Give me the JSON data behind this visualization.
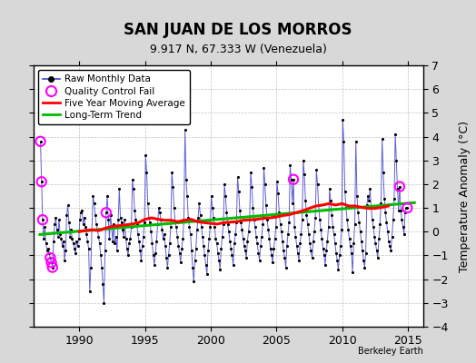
{
  "title": "SAN JUAN DE LOS MORROS",
  "subtitle": "9.917 N, 67.333 W (Venezuela)",
  "ylabel": "Temperature Anomaly (°C)",
  "credit": "Berkeley Earth",
  "xlim": [
    1986.5,
    2016.2
  ],
  "ylim": [
    -4,
    7
  ],
  "yticks": [
    -4,
    -3,
    -2,
    -1,
    0,
    1,
    2,
    3,
    4,
    5,
    6,
    7
  ],
  "xticks": [
    1990,
    1995,
    2000,
    2005,
    2010,
    2015
  ],
  "bg_color": "#d8d8d8",
  "plot_bg_color": "#ffffff",
  "raw_line_color": "#4444cc",
  "raw_dot_color": "#000000",
  "ma_color": "#ff0000",
  "trend_color": "#00bb00",
  "qc_color": "#ff00ff",
  "raw_data": [
    [
      1987.042,
      3.8
    ],
    [
      1987.125,
      2.1
    ],
    [
      1987.208,
      0.5
    ],
    [
      1987.292,
      -0.3
    ],
    [
      1987.375,
      0.2
    ],
    [
      1987.458,
      -0.5
    ],
    [
      1987.542,
      -0.8
    ],
    [
      1987.625,
      -0.7
    ],
    [
      1987.708,
      -0.9
    ],
    [
      1987.792,
      -1.1
    ],
    [
      1987.875,
      -1.3
    ],
    [
      1987.958,
      -1.5
    ],
    [
      1988.042,
      -0.4
    ],
    [
      1988.125,
      0.3
    ],
    [
      1988.208,
      0.6
    ],
    [
      1988.292,
      0.1
    ],
    [
      1988.375,
      -0.2
    ],
    [
      1988.458,
      0.5
    ],
    [
      1988.542,
      -0.1
    ],
    [
      1988.625,
      -0.3
    ],
    [
      1988.708,
      -0.6
    ],
    [
      1988.792,
      -0.4
    ],
    [
      1988.875,
      -1.2
    ],
    [
      1988.958,
      -0.8
    ],
    [
      1989.042,
      0.7
    ],
    [
      1989.125,
      1.1
    ],
    [
      1989.208,
      0.4
    ],
    [
      1989.292,
      -0.2
    ],
    [
      1989.375,
      0.1
    ],
    [
      1989.458,
      -0.3
    ],
    [
      1989.542,
      -0.5
    ],
    [
      1989.625,
      -0.7
    ],
    [
      1989.708,
      -0.9
    ],
    [
      1989.792,
      -0.4
    ],
    [
      1989.875,
      -0.6
    ],
    [
      1989.958,
      -0.3
    ],
    [
      1990.042,
      0.5
    ],
    [
      1990.125,
      0.8
    ],
    [
      1990.208,
      0.9
    ],
    [
      1990.292,
      0.3
    ],
    [
      1990.375,
      0.6
    ],
    [
      1990.458,
      0.2
    ],
    [
      1990.542,
      -0.1
    ],
    [
      1990.625,
      -0.4
    ],
    [
      1990.708,
      -0.7
    ],
    [
      1990.792,
      -2.5
    ],
    [
      1990.875,
      -1.5
    ],
    [
      1990.958,
      0.1
    ],
    [
      1991.042,
      1.5
    ],
    [
      1991.125,
      1.2
    ],
    [
      1991.208,
      0.7
    ],
    [
      1991.292,
      0.3
    ],
    [
      1991.375,
      0.1
    ],
    [
      1991.458,
      -0.2
    ],
    [
      1991.542,
      -0.5
    ],
    [
      1991.625,
      -1.0
    ],
    [
      1991.708,
      -1.5
    ],
    [
      1991.792,
      -2.2
    ],
    [
      1991.875,
      -3.0
    ],
    [
      1991.958,
      -0.8
    ],
    [
      1992.042,
      0.8
    ],
    [
      1992.125,
      1.5
    ],
    [
      1992.208,
      0.5
    ],
    [
      1992.292,
      -0.3
    ],
    [
      1992.375,
      0.7
    ],
    [
      1992.458,
      0.2
    ],
    [
      1992.542,
      -0.4
    ],
    [
      1992.625,
      0.3
    ],
    [
      1992.708,
      -0.5
    ],
    [
      1992.792,
      -0.2
    ],
    [
      1992.875,
      -0.8
    ],
    [
      1992.958,
      0.5
    ],
    [
      1993.042,
      1.8
    ],
    [
      1993.125,
      0.6
    ],
    [
      1993.208,
      0.4
    ],
    [
      1993.292,
      0.1
    ],
    [
      1993.375,
      -0.2
    ],
    [
      1993.458,
      0.5
    ],
    [
      1993.542,
      -0.3
    ],
    [
      1993.625,
      -0.7
    ],
    [
      1993.708,
      -1.0
    ],
    [
      1993.792,
      -0.5
    ],
    [
      1993.875,
      -0.3
    ],
    [
      1993.958,
      0.2
    ],
    [
      1994.042,
      2.2
    ],
    [
      1994.125,
      1.8
    ],
    [
      1994.208,
      0.9
    ],
    [
      1994.292,
      0.5
    ],
    [
      1994.375,
      0.3
    ],
    [
      1994.458,
      -0.1
    ],
    [
      1994.542,
      -0.4
    ],
    [
      1994.625,
      -0.8
    ],
    [
      1994.708,
      -1.2
    ],
    [
      1994.792,
      -0.6
    ],
    [
      1994.875,
      -0.2
    ],
    [
      1994.958,
      0.4
    ],
    [
      1995.042,
      3.2
    ],
    [
      1995.125,
      2.5
    ],
    [
      1995.208,
      1.2
    ],
    [
      1995.292,
      0.6
    ],
    [
      1995.375,
      0.4
    ],
    [
      1995.458,
      0.0
    ],
    [
      1995.542,
      -0.5
    ],
    [
      1995.625,
      -1.0
    ],
    [
      1995.708,
      -1.4
    ],
    [
      1995.792,
      -0.9
    ],
    [
      1995.875,
      -0.4
    ],
    [
      1995.958,
      0.3
    ],
    [
      1996.042,
      1.0
    ],
    [
      1996.125,
      0.8
    ],
    [
      1996.208,
      0.5
    ],
    [
      1996.292,
      0.1
    ],
    [
      1996.375,
      -0.3
    ],
    [
      1996.458,
      -0.1
    ],
    [
      1996.542,
      -0.6
    ],
    [
      1996.625,
      -1.1
    ],
    [
      1996.708,
      -1.5
    ],
    [
      1996.792,
      -1.0
    ],
    [
      1996.875,
      -0.5
    ],
    [
      1996.958,
      0.2
    ],
    [
      1997.042,
      2.5
    ],
    [
      1997.125,
      1.9
    ],
    [
      1997.208,
      1.0
    ],
    [
      1997.292,
      0.4
    ],
    [
      1997.375,
      0.2
    ],
    [
      1997.458,
      -0.2
    ],
    [
      1997.542,
      -0.6
    ],
    [
      1997.625,
      -0.9
    ],
    [
      1997.708,
      -1.3
    ],
    [
      1997.792,
      -0.7
    ],
    [
      1997.875,
      -0.3
    ],
    [
      1997.958,
      0.5
    ],
    [
      1998.042,
      4.3
    ],
    [
      1998.125,
      2.2
    ],
    [
      1998.208,
      1.5
    ],
    [
      1998.292,
      0.6
    ],
    [
      1998.375,
      0.2
    ],
    [
      1998.458,
      -0.1
    ],
    [
      1998.542,
      -0.8
    ],
    [
      1998.625,
      -1.5
    ],
    [
      1998.708,
      -2.1
    ],
    [
      1998.792,
      -1.2
    ],
    [
      1998.875,
      -0.7
    ],
    [
      1998.958,
      0.1
    ],
    [
      1999.042,
      0.6
    ],
    [
      1999.125,
      1.2
    ],
    [
      1999.208,
      0.7
    ],
    [
      1999.292,
      0.2
    ],
    [
      1999.375,
      -0.2
    ],
    [
      1999.458,
      -0.6
    ],
    [
      1999.542,
      -1.0
    ],
    [
      1999.625,
      -1.4
    ],
    [
      1999.708,
      -1.8
    ],
    [
      1999.792,
      -0.8
    ],
    [
      1999.875,
      -0.3
    ],
    [
      1999.958,
      0.2
    ],
    [
      2000.042,
      1.5
    ],
    [
      2000.125,
      1.0
    ],
    [
      2000.208,
      0.6
    ],
    [
      2000.292,
      0.2
    ],
    [
      2000.375,
      -0.3
    ],
    [
      2000.458,
      -0.5
    ],
    [
      2000.542,
      -0.9
    ],
    [
      2000.625,
      -1.2
    ],
    [
      2000.708,
      -1.6
    ],
    [
      2000.792,
      -0.7
    ],
    [
      2000.875,
      -0.2
    ],
    [
      2000.958,
      0.3
    ],
    [
      2001.042,
      2.0
    ],
    [
      2001.125,
      1.5
    ],
    [
      2001.208,
      0.8
    ],
    [
      2001.292,
      0.3
    ],
    [
      2001.375,
      0.0
    ],
    [
      2001.458,
      -0.4
    ],
    [
      2001.542,
      -0.7
    ],
    [
      2001.625,
      -1.0
    ],
    [
      2001.708,
      -1.4
    ],
    [
      2001.792,
      -0.5
    ],
    [
      2001.875,
      -0.1
    ],
    [
      2001.958,
      0.4
    ],
    [
      2002.042,
      2.3
    ],
    [
      2002.125,
      1.7
    ],
    [
      2002.208,
      0.9
    ],
    [
      2002.292,
      0.4
    ],
    [
      2002.375,
      0.1
    ],
    [
      2002.458,
      -0.3
    ],
    [
      2002.542,
      -0.6
    ],
    [
      2002.625,
      -0.8
    ],
    [
      2002.708,
      -1.1
    ],
    [
      2002.792,
      -0.4
    ],
    [
      2002.875,
      0.0
    ],
    [
      2002.958,
      0.5
    ],
    [
      2003.042,
      2.5
    ],
    [
      2003.125,
      1.9
    ],
    [
      2003.208,
      1.0
    ],
    [
      2003.292,
      0.5
    ],
    [
      2003.375,
      0.2
    ],
    [
      2003.458,
      -0.2
    ],
    [
      2003.542,
      -0.5
    ],
    [
      2003.625,
      -0.9
    ],
    [
      2003.708,
      -1.2
    ],
    [
      2003.792,
      -0.6
    ],
    [
      2003.875,
      -0.2
    ],
    [
      2003.958,
      0.3
    ],
    [
      2004.042,
      2.7
    ],
    [
      2004.125,
      2.0
    ],
    [
      2004.208,
      1.1
    ],
    [
      2004.292,
      0.5
    ],
    [
      2004.375,
      0.1
    ],
    [
      2004.458,
      -0.3
    ],
    [
      2004.542,
      -0.7
    ],
    [
      2004.625,
      -1.0
    ],
    [
      2004.708,
      -1.3
    ],
    [
      2004.792,
      -0.7
    ],
    [
      2004.875,
      -0.3
    ],
    [
      2004.958,
      0.2
    ],
    [
      2005.042,
      2.1
    ],
    [
      2005.125,
      1.6
    ],
    [
      2005.208,
      0.8
    ],
    [
      2005.292,
      0.3
    ],
    [
      2005.375,
      0.0
    ],
    [
      2005.458,
      -0.4
    ],
    [
      2005.542,
      -0.8
    ],
    [
      2005.625,
      -1.1
    ],
    [
      2005.708,
      -1.5
    ],
    [
      2005.792,
      -0.6
    ],
    [
      2005.875,
      -0.1
    ],
    [
      2005.958,
      0.4
    ],
    [
      2006.042,
      2.8
    ],
    [
      2006.125,
      2.2
    ],
    [
      2006.208,
      1.2
    ],
    [
      2006.292,
      2.2
    ],
    [
      2006.375,
      0.2
    ],
    [
      2006.458,
      -0.2
    ],
    [
      2006.542,
      -0.6
    ],
    [
      2006.625,
      -0.9
    ],
    [
      2006.708,
      -1.2
    ],
    [
      2006.792,
      -0.5
    ],
    [
      2006.875,
      -0.1
    ],
    [
      2006.958,
      0.5
    ],
    [
      2007.042,
      3.0
    ],
    [
      2007.125,
      2.4
    ],
    [
      2007.208,
      1.3
    ],
    [
      2007.292,
      0.7
    ],
    [
      2007.375,
      0.3
    ],
    [
      2007.458,
      -0.1
    ],
    [
      2007.542,
      -0.5
    ],
    [
      2007.625,
      -0.8
    ],
    [
      2007.708,
      -1.1
    ],
    [
      2007.792,
      -0.4
    ],
    [
      2007.875,
      0.0
    ],
    [
      2007.958,
      0.6
    ],
    [
      2008.042,
      2.6
    ],
    [
      2008.125,
      2.0
    ],
    [
      2008.208,
      1.1
    ],
    [
      2008.292,
      0.5
    ],
    [
      2008.375,
      0.1
    ],
    [
      2008.458,
      -0.3
    ],
    [
      2008.542,
      -0.7
    ],
    [
      2008.625,
      -1.0
    ],
    [
      2008.708,
      -1.4
    ],
    [
      2008.792,
      -0.8
    ],
    [
      2008.875,
      -0.4
    ],
    [
      2008.958,
      0.2
    ],
    [
      2009.042,
      1.8
    ],
    [
      2009.125,
      1.3
    ],
    [
      2009.208,
      0.7
    ],
    [
      2009.292,
      0.2
    ],
    [
      2009.375,
      -0.1
    ],
    [
      2009.458,
      -0.5
    ],
    [
      2009.542,
      -0.9
    ],
    [
      2009.625,
      -1.2
    ],
    [
      2009.708,
      -1.6
    ],
    [
      2009.792,
      -1.0
    ],
    [
      2009.875,
      -0.6
    ],
    [
      2009.958,
      0.1
    ],
    [
      2010.042,
      4.7
    ],
    [
      2010.125,
      3.8
    ],
    [
      2010.208,
      1.7
    ],
    [
      2010.292,
      1.0
    ],
    [
      2010.375,
      0.5
    ],
    [
      2010.458,
      0.1
    ],
    [
      2010.542,
      -0.3
    ],
    [
      2010.625,
      -0.6
    ],
    [
      2010.708,
      -0.9
    ],
    [
      2010.792,
      -1.7
    ],
    [
      2010.875,
      -0.5
    ],
    [
      2010.958,
      0.3
    ],
    [
      2011.042,
      3.8
    ],
    [
      2011.125,
      1.5
    ],
    [
      2011.208,
      0.8
    ],
    [
      2011.292,
      0.4
    ],
    [
      2011.375,
      0.0
    ],
    [
      2011.458,
      -0.4
    ],
    [
      2011.542,
      -0.8
    ],
    [
      2011.625,
      -1.2
    ],
    [
      2011.708,
      -1.5
    ],
    [
      2011.792,
      -0.9
    ],
    [
      2011.875,
      1.1
    ],
    [
      2011.958,
      1.5
    ],
    [
      2012.042,
      1.3
    ],
    [
      2012.125,
      1.8
    ],
    [
      2012.208,
      1.0
    ],
    [
      2012.292,
      0.5
    ],
    [
      2012.375,
      0.2
    ],
    [
      2012.458,
      -0.2
    ],
    [
      2012.542,
      -0.5
    ],
    [
      2012.625,
      -0.8
    ],
    [
      2012.708,
      -1.1
    ],
    [
      2012.792,
      -0.3
    ],
    [
      2012.875,
      0.3
    ],
    [
      2012.958,
      1.2
    ],
    [
      2013.042,
      3.9
    ],
    [
      2013.125,
      2.5
    ],
    [
      2013.208,
      1.4
    ],
    [
      2013.292,
      0.8
    ],
    [
      2013.375,
      0.4
    ],
    [
      2013.458,
      0.0
    ],
    [
      2013.542,
      -0.4
    ],
    [
      2013.625,
      -0.6
    ],
    [
      2013.708,
      -0.8
    ],
    [
      2013.792,
      -0.2
    ],
    [
      2013.875,
      0.5
    ],
    [
      2013.958,
      1.4
    ],
    [
      2014.042,
      4.1
    ],
    [
      2014.125,
      3.0
    ],
    [
      2014.208,
      1.8
    ],
    [
      2014.292,
      0.9
    ],
    [
      2014.375,
      1.9
    ],
    [
      2014.458,
      0.9
    ],
    [
      2014.542,
      0.5
    ],
    [
      2014.625,
      0.2
    ],
    [
      2014.708,
      -0.1
    ],
    [
      2014.792,
      0.8
    ],
    [
      2014.875,
      1.0
    ],
    [
      2014.958,
      1.0
    ]
  ],
  "qc_fail_points": [
    [
      1987.042,
      3.8
    ],
    [
      1987.125,
      2.1
    ],
    [
      1987.208,
      0.5
    ],
    [
      1987.792,
      -1.1
    ],
    [
      1987.875,
      -1.3
    ],
    [
      1987.958,
      -1.5
    ],
    [
      1992.042,
      0.8
    ],
    [
      2006.292,
      2.2
    ],
    [
      2014.375,
      1.9
    ],
    [
      2014.958,
      1.0
    ]
  ],
  "moving_avg": [
    [
      1990.0,
      0.0
    ],
    [
      1990.5,
      0.05
    ],
    [
      1991.0,
      0.08
    ],
    [
      1991.5,
      0.05
    ],
    [
      1992.0,
      0.15
    ],
    [
      1992.5,
      0.22
    ],
    [
      1993.0,
      0.25
    ],
    [
      1993.5,
      0.28
    ],
    [
      1994.0,
      0.32
    ],
    [
      1994.5,
      0.38
    ],
    [
      1995.0,
      0.52
    ],
    [
      1995.5,
      0.58
    ],
    [
      1996.0,
      0.52
    ],
    [
      1996.5,
      0.48
    ],
    [
      1997.0,
      0.48
    ],
    [
      1997.5,
      0.42
    ],
    [
      1998.0,
      0.48
    ],
    [
      1998.5,
      0.52
    ],
    [
      1999.0,
      0.42
    ],
    [
      1999.5,
      0.38
    ],
    [
      2000.0,
      0.35
    ],
    [
      2000.5,
      0.32
    ],
    [
      2001.0,
      0.38
    ],
    [
      2001.5,
      0.4
    ],
    [
      2002.0,
      0.42
    ],
    [
      2002.5,
      0.48
    ],
    [
      2003.0,
      0.5
    ],
    [
      2003.5,
      0.52
    ],
    [
      2004.0,
      0.56
    ],
    [
      2004.5,
      0.58
    ],
    [
      2005.0,
      0.62
    ],
    [
      2005.5,
      0.68
    ],
    [
      2006.0,
      0.72
    ],
    [
      2006.5,
      0.8
    ],
    [
      2007.0,
      0.88
    ],
    [
      2007.5,
      0.98
    ],
    [
      2008.0,
      1.08
    ],
    [
      2008.5,
      1.12
    ],
    [
      2009.0,
      1.18
    ],
    [
      2009.5,
      1.12
    ],
    [
      2010.0,
      1.18
    ],
    [
      2010.5,
      1.08
    ],
    [
      2011.0,
      1.08
    ],
    [
      2011.5,
      1.02
    ],
    [
      2012.0,
      0.98
    ],
    [
      2012.5,
      0.98
    ],
    [
      2013.0,
      1.02
    ],
    [
      2013.5,
      1.08
    ]
  ],
  "trend_x": [
    1987.0,
    2015.5
  ],
  "trend_y": [
    -0.12,
    1.22
  ]
}
